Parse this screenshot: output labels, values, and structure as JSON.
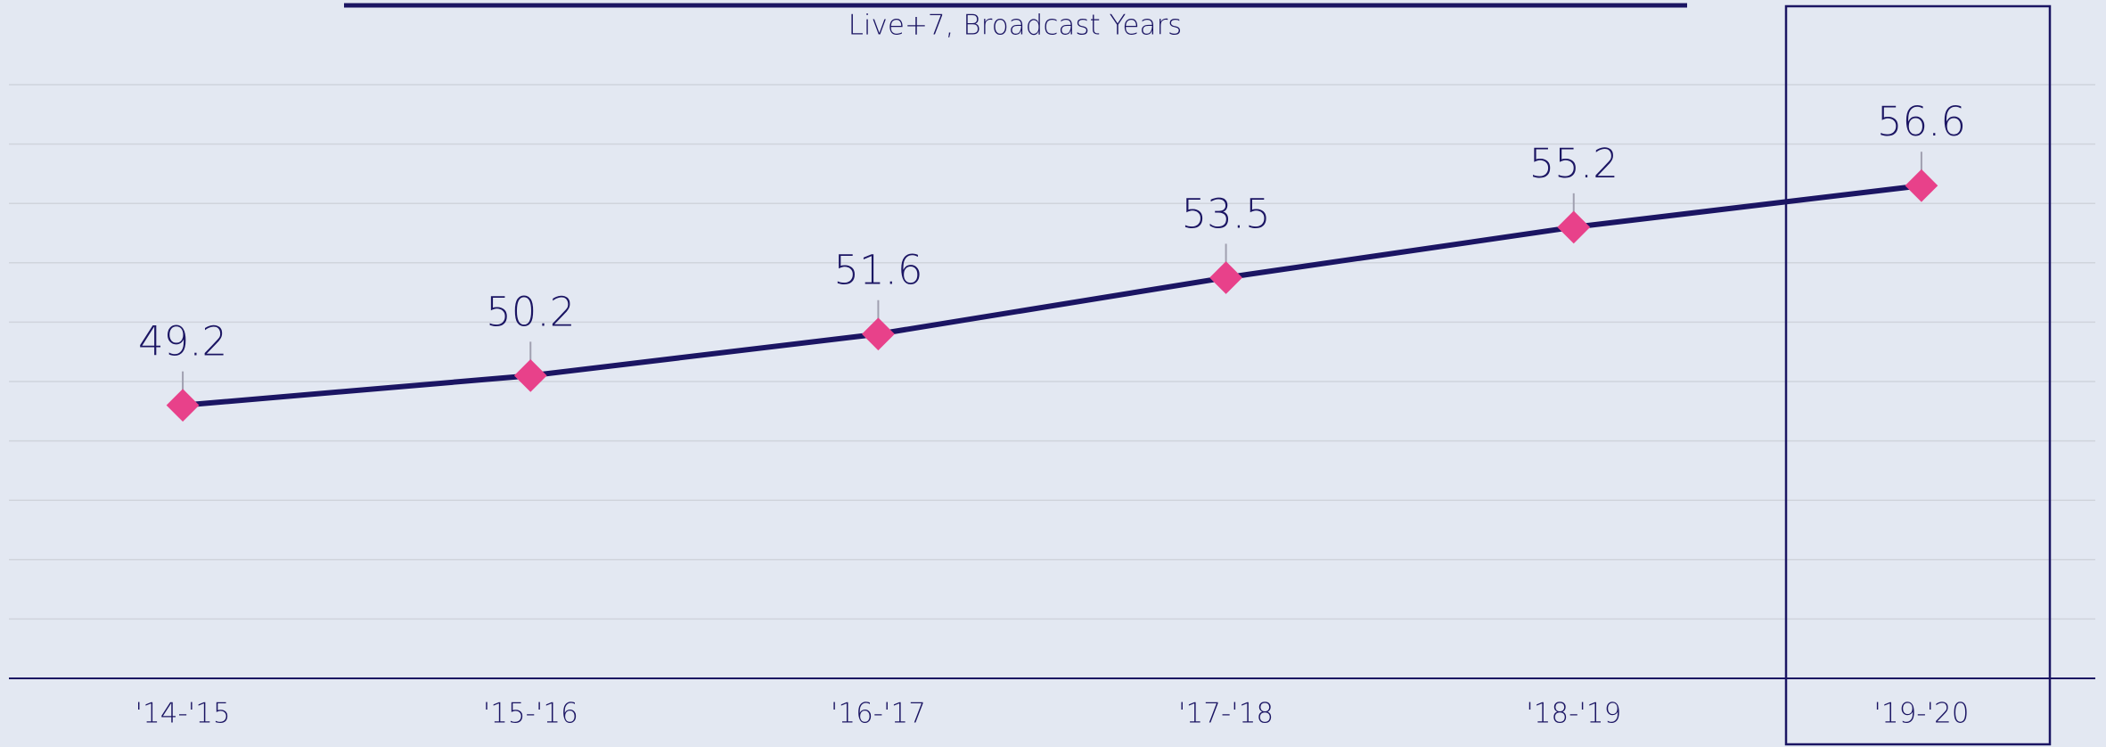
{
  "chart_data": {
    "type": "line",
    "subtitle": "Live+7, Broadcast Years",
    "categories": [
      "'14-'15",
      "'15-'16",
      "'16-'17",
      "'17-'18",
      "'18-'19",
      "'19-'20"
    ],
    "series": [
      {
        "color": "#1b1563",
        "marker_color": "#e8418a",
        "values": [
          49.2,
          50.2,
          51.6,
          53.5,
          55.2,
          56.6
        ]
      }
    ],
    "ylim": [
      40,
      60
    ],
    "yticks": [
      40,
      42,
      44,
      46,
      48,
      50,
      52,
      54,
      56,
      58,
      60
    ],
    "grid": true
  }
}
